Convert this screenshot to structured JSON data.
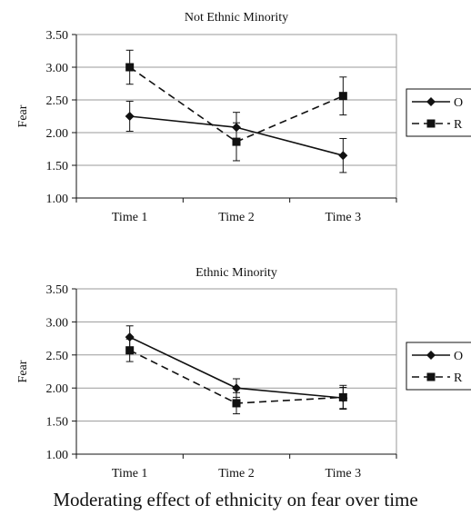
{
  "caption": "Moderating effect of ethnicity on fear over time",
  "colors": {
    "line": "#111111",
    "grid": "#9a9a9a",
    "background": "#ffffff"
  },
  "chart_data": [
    {
      "type": "line",
      "title": "Not Ethnic Minority",
      "xlabel": "",
      "ylabel": "Fear",
      "categories": [
        "Time 1",
        "Time 2",
        "Time 3"
      ],
      "ylim": [
        1.0,
        3.5
      ],
      "yticks": [
        "1.00",
        "1.50",
        "2.00",
        "2.50",
        "3.00",
        "3.50"
      ],
      "grid": true,
      "legend_position": "right",
      "series": [
        {
          "name": "O",
          "marker": "diamond",
          "line_style": "solid",
          "values": [
            2.25,
            2.08,
            1.65
          ],
          "error": [
            0.23,
            0.23,
            0.26
          ]
        },
        {
          "name": "R",
          "marker": "square",
          "line_style": "dashed",
          "values": [
            3.0,
            1.86,
            2.56
          ],
          "error": [
            0.26,
            0.29,
            0.29
          ]
        }
      ]
    },
    {
      "type": "line",
      "title": "Ethnic Minority",
      "xlabel": "",
      "ylabel": "Fear",
      "categories": [
        "Time 1",
        "Time 2",
        "Time 3"
      ],
      "ylim": [
        1.0,
        3.5
      ],
      "yticks": [
        "1.00",
        "1.50",
        "2.00",
        "2.50",
        "3.00",
        "3.50"
      ],
      "grid": true,
      "legend_position": "right",
      "series": [
        {
          "name": "O",
          "marker": "diamond",
          "line_style": "solid",
          "values": [
            2.77,
            2.0,
            1.85
          ],
          "error": [
            0.17,
            0.14,
            0.16
          ]
        },
        {
          "name": "R",
          "marker": "square",
          "line_style": "dashed",
          "values": [
            2.57,
            1.77,
            1.86
          ],
          "error": [
            0.17,
            0.16,
            0.18
          ]
        }
      ]
    }
  ]
}
